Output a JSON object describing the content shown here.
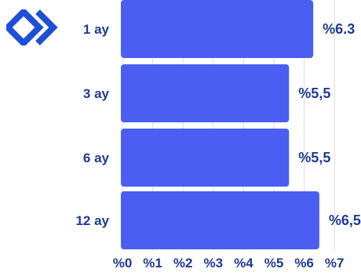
{
  "chart_data": {
    "type": "bar",
    "orientation": "horizontal",
    "categories": [
      "1 ay",
      "3 ay",
      "6 ay",
      "12 ay"
    ],
    "values": [
      6.3,
      5.5,
      5.5,
      6.5
    ],
    "data_labels": [
      "%6.3",
      "%5,5",
      "%5,5",
      "%6,5"
    ],
    "x_ticks": [
      "%0",
      "%1",
      "%2",
      "%3",
      "%4",
      "%5",
      "%6",
      "%7"
    ],
    "xlim": [
      0,
      7
    ],
    "grid": true,
    "title": "",
    "xlabel": "",
    "ylabel": "",
    "colors": {
      "bar": "#4a5ff2",
      "text": "#1f3a93",
      "grid": "#d9dbe4"
    }
  },
  "logo": {
    "icon": "double-chevron-logo-icon",
    "color": "#1d4fd8"
  }
}
